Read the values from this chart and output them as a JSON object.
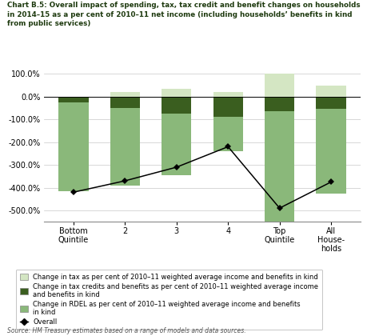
{
  "categories": [
    "Bottom\nQuintile",
    "2",
    "3",
    "4",
    "Top\nQuintile",
    "All\nHouse-\nholds"
  ],
  "bars_tax": [
    0.0,
    0.2,
    0.35,
    0.2,
    1.1,
    0.5
  ],
  "bars_credits": [
    -0.25,
    -0.5,
    -0.75,
    -0.9,
    -0.65,
    -0.55
  ],
  "bars_rdel": [
    -3.9,
    -3.4,
    -2.7,
    -1.5,
    -5.3,
    -3.7
  ],
  "overall": [
    -4.2,
    -3.7,
    -3.1,
    -2.2,
    -4.9,
    -3.75
  ],
  "color_tax": "#d4e6c3",
  "color_credits": "#3a5e1f",
  "color_rdel": "#8ab87a",
  "title": "Chart B.5: Overall impact of spending, tax, tax credit and benefit changes on households\nin 2014–15 as a per cent of 2010–11 net income (including households’ benefits in kind\nfrom public services)",
  "ylim": [
    -5.5,
    1.0
  ],
  "yticks": [
    1.0,
    0.0,
    -1.0,
    -2.0,
    -3.0,
    -4.0,
    -5.0
  ],
  "legend_tax": "Change in tax as per cent of 2010–11 weighted average income and benefits in kind",
  "legend_credits": "Change in tax credits and benefits as per cent of 2010–11 weighted average income\nand benefits in kind",
  "legend_rdel": "Change in RDEL as per cent of 2010–11 weighted average income and benefits\nin kind",
  "legend_overall": "Overall",
  "source": "Source: HM Treasury estimates based on a range of models and data sources."
}
